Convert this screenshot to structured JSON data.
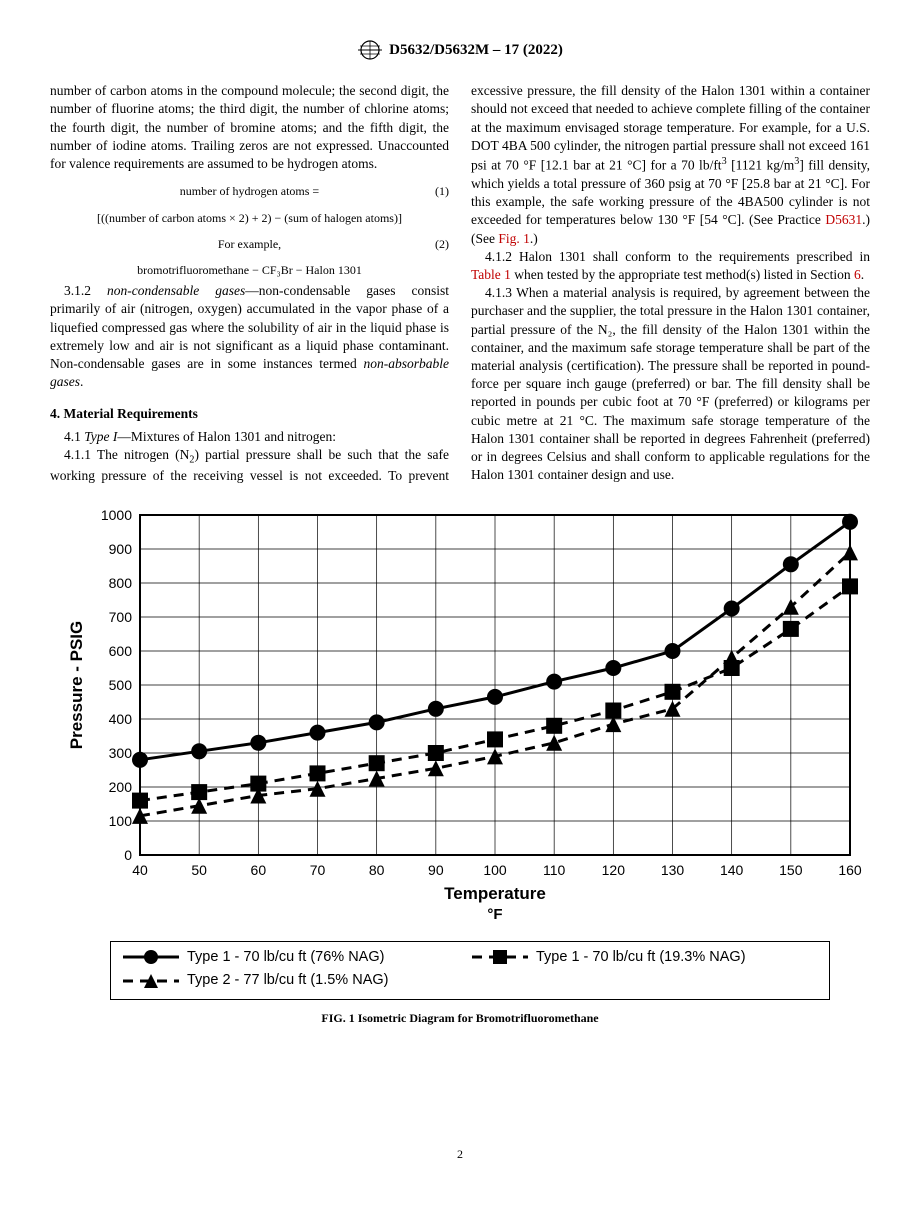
{
  "header": {
    "title": "D5632/D5632M – 17 (2022)"
  },
  "col1": {
    "lead": "number of carbon atoms in the compound molecule; the second digit, the number of fluorine atoms; the third digit, the number of chlorine atoms; the fourth digit, the number of bromine atoms; and the fifth digit, the number of iodine atoms. Trailing zeros are not expressed. Unaccounted for valence requirements are assumed to be hydrogen atoms.",
    "eq1_label": "number of hydrogen atoms =",
    "eq1_num": "(1)",
    "eq2_body": "[((number of carbon atoms × 2) + 2) − (sum of halogen atoms)]",
    "eq2_label": "For example,",
    "eq2_num": "(2)",
    "eq3": "bromotrifluoromethane − CF₃Br − Halon 1301",
    "p312_num": "3.1.2 ",
    "p312_term": "non-condensable gases",
    "p312_body": "—non-condensable gases consist primarily of air (nitrogen, oxygen) accumulated in the vapor phase of a liquefied compressed gas where the solubility of air in the liquid phase is extremely low and air is not significant as a liquid phase contaminant. Non-condensable gases are in some instances termed ",
    "p312_tail": "non-absorbable gases",
    "sec4_head": "4. Material Requirements",
    "p41_num": "4.1 ",
    "p41_term": "Type I",
    "p41_body": "—Mixtures of Halon 1301 and nitrogen:",
    "p411_num": "4.1.1 ",
    "p411_body_a": "The nitrogen (N",
    "p411_body_b": ") partial pressure shall be such that the safe working pressure of the receiving vessel is not exceeded. To prevent excessive pressure, the fill density of the "
  },
  "col2": {
    "p411_cont_a": "Halon 1301 within a container should not exceed that needed to achieve complete filling of the container at the maximum envisaged storage temperature. For example, for a U.S. DOT 4BA 500 cylinder, the nitrogen partial pressure shall not exceed 161 psi at 70 °F [12.1 bar at 21 °C] for a 70 lb/ft",
    "p411_cont_b": " [1121 kg/m",
    "p411_cont_c": "] fill density, which yields a total pressure of 360 psig at 70 °F [25.8 bar at 21 °C]. For this example, the safe working pressure of the 4BA500 cylinder is not exceeded for temperatures below 130 °F [54 °C]. (See Practice ",
    "p411_link1": "D5631",
    "p411_cont_d": ".) (See ",
    "p411_link2": "Fig. 1",
    "p411_cont_e": ".)",
    "p412_num": "4.1.2 ",
    "p412_body_a": "Halon 1301 shall conform to the requirements prescribed in ",
    "p412_link1": "Table 1",
    "p412_body_b": " when tested by the appropriate test method(s) listed in Section ",
    "p412_link2": "6",
    "p412_body_c": ".",
    "p413_num": "4.1.3 ",
    "p413_body": "When a material analysis is required, by agreement between the purchaser and the supplier, the total pressure in the Halon 1301 container, partial pressure of the N₂, the fill density of the Halon 1301 within the container, and the maximum safe storage temperature shall be part of the material analysis (certification). The pressure shall be reported in pound-force per square inch gauge (preferred) or bar. The fill density shall be reported in pounds per cubic foot at 70 °F (preferred) or kilograms per cubic metre at 21 °C. The maximum safe storage temperature of the Halon 1301 container shall be reported in degrees Fahrenheit (preferred) or in degrees Celsius and shall conform to applicable regulations for the Halon 1301 container design and use."
  },
  "chart": {
    "type": "line",
    "ylabel": "Pressure - PSIG",
    "xlabel": "Temperature",
    "xunit": "°F",
    "x_values": [
      40,
      50,
      60,
      70,
      80,
      90,
      100,
      110,
      120,
      130,
      140,
      150,
      160
    ],
    "ylim": [
      0,
      1000
    ],
    "ytick_step": 100,
    "xlim": [
      40,
      160
    ],
    "xtick_step": 10,
    "series": [
      {
        "id": "s1",
        "label": "Type 1 - 70 lb/cu ft (76% NAG)",
        "marker": "circle",
        "dash": "0",
        "y": [
          280,
          305,
          330,
          360,
          390,
          430,
          465,
          510,
          550,
          600,
          725,
          855,
          980
        ]
      },
      {
        "id": "s2",
        "label": "Type 1 - 70 lb/cu ft (19.3% NAG)",
        "marker": "square",
        "dash": "10,7",
        "y": [
          160,
          185,
          210,
          240,
          270,
          300,
          340,
          380,
          425,
          480,
          550,
          665,
          790
        ]
      },
      {
        "id": "s3",
        "label": "Type 2 - 77 lb/cu ft (1.5% NAG)",
        "marker": "triangle",
        "dash": "10,7",
        "y": [
          115,
          145,
          175,
          195,
          225,
          255,
          290,
          330,
          385,
          430,
          580,
          730,
          890
        ]
      }
    ],
    "axis_fontsize": 14,
    "label_fontsize": 17,
    "label_fontweight": "bold",
    "line_color": "#000000",
    "grid_color": "#000000",
    "background_color": "#ffffff",
    "line_width": 2,
    "marker_size": 8,
    "font_family": "Arial"
  },
  "legend": {
    "items": [
      {
        "series": "s1",
        "text": "Type 1 - 70 lb/cu ft (76% NAG)"
      },
      {
        "series": "s2",
        "text": "Type 1 - 70 lb/cu ft (19.3% NAG)"
      },
      {
        "series": "s3",
        "text": "Type 2 - 77 lb/cu ft (1.5% NAG)"
      }
    ]
  },
  "fig_caption": "FIG. 1 Isometric Diagram for Bromotrifluoromethane",
  "page_num": "2"
}
